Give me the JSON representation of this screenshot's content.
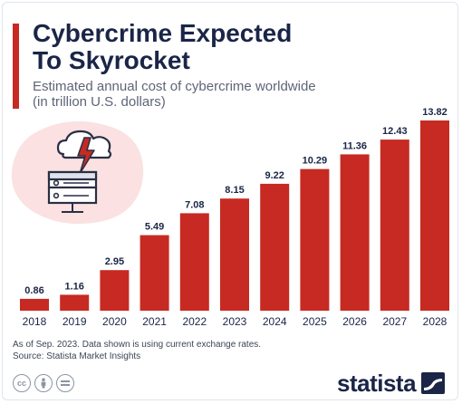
{
  "header": {
    "title_line1": "Cybercrime Expected",
    "title_line2": "To Skyrocket",
    "subtitle_line1": "Estimated annual cost of cybercrime worldwide",
    "subtitle_line2": "(in trillion U.S. dollars)"
  },
  "footer": {
    "note": "As of Sep. 2023. Data shown is using current exchange rates.",
    "source": "Source: Statista Market Insights",
    "license_icons": [
      "cc-icon",
      "attribution-icon",
      "no-derivatives-icon"
    ],
    "brand": "statista"
  },
  "colors": {
    "bar": "#c62a22",
    "title": "#1a2547",
    "accent": "#c62a22"
  },
  "chart_data": {
    "type": "bar",
    "title": "Cybercrime Expected To Skyrocket",
    "subtitle": "Estimated annual cost of cybercrime worldwide (in trillion U.S. dollars)",
    "categories": [
      "2018",
      "2019",
      "2020",
      "2021",
      "2022",
      "2023",
      "2024",
      "2025",
      "2026",
      "2027",
      "2028"
    ],
    "values": [
      0.86,
      1.16,
      2.95,
      5.49,
      7.08,
      8.15,
      9.22,
      10.29,
      11.36,
      12.43,
      13.82
    ],
    "data_labels": [
      "0.86",
      "1.16",
      "2.95",
      "5.49",
      "7.08",
      "8.15",
      "9.22",
      "10.29",
      "11.36",
      "12.43",
      "13.82"
    ],
    "xlabel": "",
    "ylabel": "",
    "ylim": [
      0,
      13.82
    ],
    "grid": false,
    "legend": "none"
  }
}
